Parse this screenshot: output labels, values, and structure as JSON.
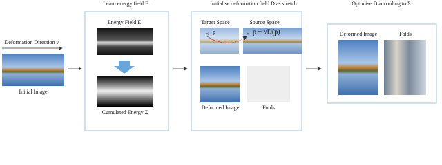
{
  "steps": {
    "learn": "Learn energy field E.",
    "initialise": "Initialise deformation field D as stretch.",
    "optimise": "Optimise D according to Σ."
  },
  "input": {
    "direction": "Deformation Direction v",
    "label": "Initial Image"
  },
  "energy": {
    "field": "Energy Field E",
    "cumulated": "Cumulated Energy Σ"
  },
  "stretch": {
    "target": "Target Space",
    "source": "Source Space",
    "point": "p",
    "mapped": "p + vD(p)",
    "deformed": "Deformed Image",
    "folds": "Folds"
  },
  "result": {
    "deformed": "Deformed Image",
    "folds": "Folds"
  }
}
